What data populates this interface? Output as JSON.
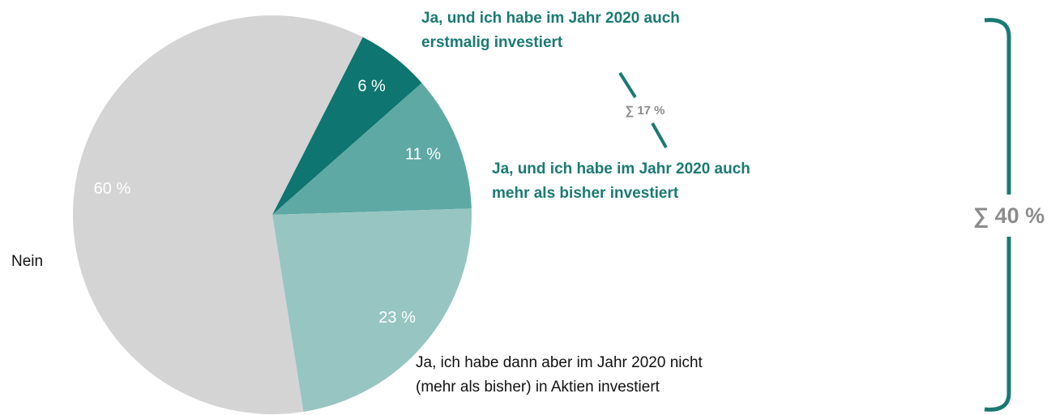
{
  "chart_data": {
    "type": "pie",
    "categories": [
      "Ja, und ich habe im Jahr 2020 auch\nerstmalig investiert",
      "Ja, und ich habe im Jahr 2020 auch\nmehr als bisher investiert",
      "Ja, ich habe dann aber im Jahr 2020 nicht\n(mehr als bisher) in Aktien investiert",
      "Nein"
    ],
    "values": [
      6,
      11,
      23,
      60
    ],
    "value_labels": [
      "6 %",
      "11 %",
      "23 %",
      "60 %"
    ],
    "colors": [
      "#0e7570",
      "#5ea9a4",
      "#96c5c2",
      "#d4d4d4"
    ],
    "annotations": [
      "∑ 17 %",
      "∑ 40 %"
    ]
  }
}
